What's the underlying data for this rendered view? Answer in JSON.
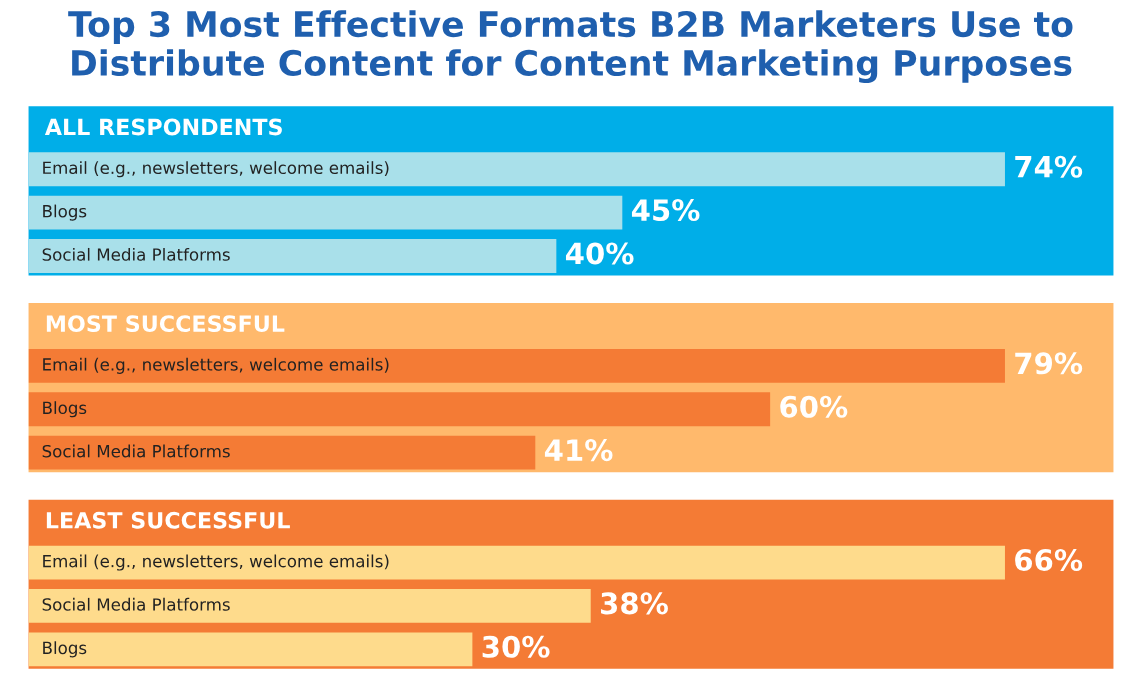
{
  "chart_data": [
    {
      "type": "bar",
      "orientation": "horizontal",
      "title": "Top 3 Most Effective Formats B2B Marketers Use to Distribute Content for Content Marketing Purposes",
      "subtitle": "ALL RESPONDENTS",
      "categories": [
        "Email (e.g., newsletters, welcome emails)",
        "Blogs",
        "Social Media Platforms"
      ],
      "series": [
        {
          "color": "#a9e0ea",
          "values": [
            74,
            45,
            40
          ],
          "value_labels": [
            "74%",
            "45%",
            "40%"
          ]
        }
      ]
    },
    {
      "type": "bar",
      "orientation": "horizontal",
      "subtitle": "MOST SUCCESSFUL",
      "categories": [
        "Email (e.g., newsletters, welcome emails)",
        "Blogs",
        "Social Media Platforms"
      ],
      "series": [
        {
          "color": "#f47b35",
          "values": [
            79,
            60,
            41
          ],
          "value_labels": [
            "79%",
            "60%",
            "41%"
          ]
        }
      ]
    },
    {
      "type": "bar",
      "orientation": "horizontal",
      "subtitle": "LEAST SUCCESSFUL",
      "categories": [
        "Email (e.g., newsletters, welcome emails)",
        "Social Media Platforms",
        "Blogs"
      ],
      "series": [
        {
          "color": "#fedb8c",
          "values": [
            66,
            38,
            30
          ],
          "value_labels": [
            "66%",
            "38%",
            "30%"
          ]
        }
      ]
    }
  ]
}
